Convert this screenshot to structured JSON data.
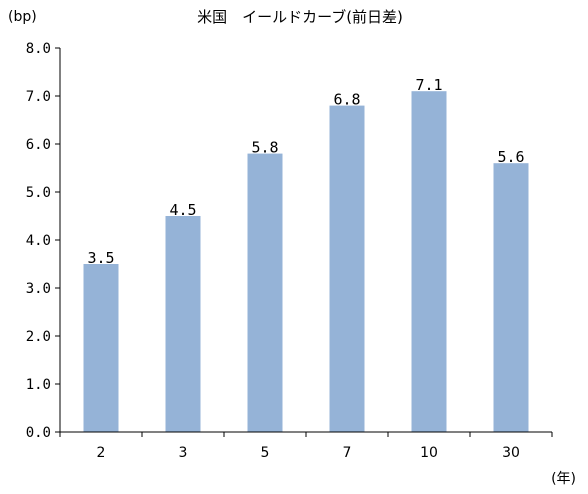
{
  "chart_data": {
    "type": "bar",
    "title": "米国　イールドカーブ(前日差)",
    "ylabel": "(bp)",
    "xlabel": "(年)",
    "categories": [
      "2",
      "3",
      "5",
      "7",
      "10",
      "30"
    ],
    "values": [
      3.5,
      4.5,
      5.8,
      6.8,
      7.1,
      5.6
    ],
    "data_labels": [
      "3.5",
      "4.5",
      "5.8",
      "6.8",
      "7.1",
      "5.6"
    ],
    "ylim": [
      0,
      8
    ],
    "yticks": [
      "0.0",
      "1.0",
      "2.0",
      "3.0",
      "4.0",
      "5.0",
      "6.0",
      "7.0",
      "8.0"
    ],
    "grid": false,
    "legend": "none",
    "bar_color": "#95B3D7",
    "axis_color": "#000000"
  }
}
